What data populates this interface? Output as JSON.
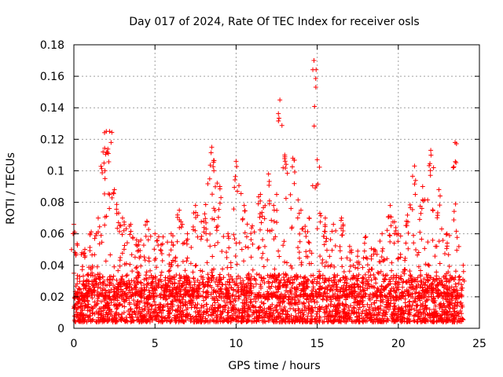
{
  "chart_data": {
    "type": "scatter",
    "title": "Day 017 of 2024, Rate Of TEC Index for receiver osls",
    "xlabel": "GPS time / hours",
    "ylabel": "ROTI / TECUs",
    "xlim": [
      0,
      25
    ],
    "ylim": [
      0,
      0.18
    ],
    "xticks": [
      "0",
      "5",
      "10",
      "15",
      "20",
      "25"
    ],
    "yticks": [
      "0",
      "0.02",
      "0.04",
      "0.06",
      "0.08",
      "0.1",
      "0.12",
      "0.14",
      "0.16",
      "0.18"
    ],
    "grid": true,
    "marker": "+",
    "color": "#ff0000",
    "series": [
      {
        "name": "ROTI",
        "note": "dense per-satellite scatter; baseline ~0.005-0.03 TECU, envelope of local maxima listed below",
        "envelope_x": [
          0,
          0.5,
          1,
          1.5,
          1.8,
          2,
          2.2,
          2.5,
          3,
          3.5,
          4,
          4.5,
          5,
          5.5,
          6,
          6.5,
          7,
          7.5,
          8,
          8.5,
          9,
          9.5,
          10,
          10.5,
          11,
          11.5,
          12,
          12.5,
          12.7,
          13,
          13.5,
          14,
          14.5,
          14.8,
          15,
          15.5,
          16,
          16.5,
          17,
          17.5,
          18,
          18.5,
          19,
          19.5,
          20,
          20.5,
          21,
          21.5,
          22,
          22.5,
          23,
          23.5,
          24
        ],
        "envelope_y": [
          0.066,
          0.048,
          0.06,
          0.07,
          0.112,
          0.125,
          0.125,
          0.088,
          0.07,
          0.066,
          0.055,
          0.068,
          0.06,
          0.058,
          0.06,
          0.075,
          0.06,
          0.078,
          0.068,
          0.115,
          0.09,
          0.06,
          0.106,
          0.078,
          0.065,
          0.085,
          0.098,
          0.085,
          0.145,
          0.11,
          0.108,
          0.075,
          0.07,
          0.17,
          0.107,
          0.07,
          0.066,
          0.07,
          0.052,
          0.049,
          0.058,
          0.05,
          0.06,
          0.078,
          0.06,
          0.068,
          0.103,
          0.09,
          0.113,
          0.088,
          0.06,
          0.118,
          0.04
        ]
      }
    ]
  }
}
